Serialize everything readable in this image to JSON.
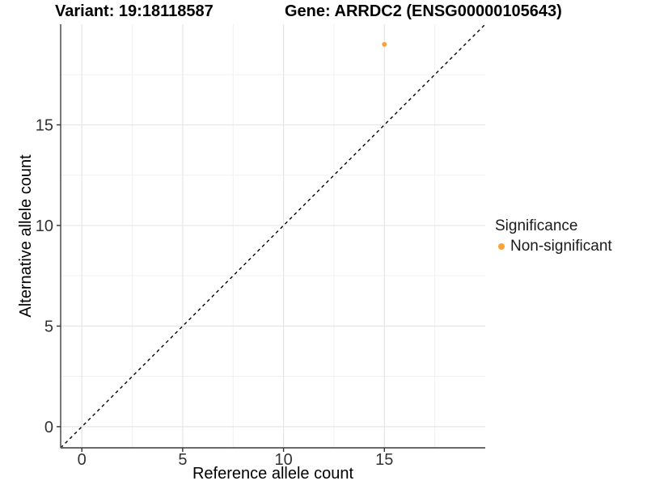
{
  "header": {
    "title_left": "Variant: 19:18118587",
    "title_right": "Gene: ARRDC2 (ENSG00000105643)"
  },
  "chart_data": {
    "type": "scatter",
    "xlabel": "Reference allele count",
    "ylabel": "Alternative allele count",
    "xlim": [
      -1.05,
      20.0
    ],
    "ylim": [
      -1.05,
      20.0
    ],
    "x_ticks": [
      0,
      5,
      10,
      15
    ],
    "y_ticks": [
      0,
      5,
      10,
      15
    ],
    "x_minor_ticks": [
      2.5,
      7.5,
      12.5,
      17.5
    ],
    "y_minor_ticks": [
      2.5,
      7.5,
      12.5,
      17.5
    ],
    "grid": true,
    "series": [
      {
        "name": "Non-significant",
        "color": "#FBA238",
        "points": [
          {
            "x": 15,
            "y": 19
          }
        ]
      }
    ],
    "reference_line": {
      "slope": 1,
      "intercept": 0,
      "style": "dashed",
      "color": "#000000",
      "description": "y = x identity line"
    },
    "legend": {
      "title": "Significance",
      "position": "right",
      "items": [
        {
          "label": "Non-significant",
          "color": "#FBA238"
        }
      ]
    }
  },
  "style_colors": {
    "grid_major": "#e6e6e6",
    "grid_minor": "#f1f1f1",
    "axis_line": "#555555",
    "tick_mark": "#333333",
    "tick_label": "#333333",
    "axis_title": "#000000",
    "point": "#FBA238"
  }
}
